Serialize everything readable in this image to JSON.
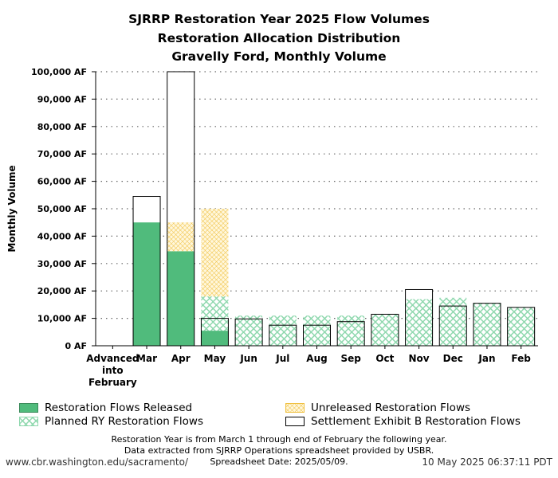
{
  "colors": {
    "released": "#50bb7c",
    "planned_hatch": "#8fd8ae",
    "unreleased_hatch": "#f0c040",
    "settlement_edge": "#000000",
    "grid": "#666666"
  },
  "chart_data": {
    "type": "bar",
    "title": [
      "SJRRP Restoration Year 2025 Flow Volumes",
      "Restoration Allocation Distribution",
      "Gravelly Ford, Monthly Volume"
    ],
    "ylabel": "Monthly Volume",
    "xlabel": "",
    "ylim": [
      0,
      100000
    ],
    "y_ticks": [
      0,
      10000,
      20000,
      30000,
      40000,
      50000,
      60000,
      70000,
      80000,
      90000,
      100000
    ],
    "y_tick_labels": [
      "0 AF",
      "10,000 AF",
      "20,000 AF",
      "30,000 AF",
      "40,000 AF",
      "50,000 AF",
      "60,000 AF",
      "70,000 AF",
      "80,000 AF",
      "90,000 AF",
      "100,000 AF"
    ],
    "grid": true,
    "categories": [
      "Advanced into February",
      "Mar",
      "Apr",
      "May",
      "Jun",
      "Jul",
      "Aug",
      "Sep",
      "Oct",
      "Nov",
      "Dec",
      "Jan",
      "Feb"
    ],
    "series": [
      {
        "name": "Restoration Flows Released",
        "style": "solid",
        "values": [
          0,
          45000,
          34500,
          5500,
          0,
          0,
          0,
          0,
          0,
          0,
          0,
          0,
          0
        ]
      },
      {
        "name": "Planned RY Restoration Flows",
        "style": "hatch",
        "values": [
          0,
          0,
          0,
          12500,
          11000,
          11000,
          11000,
          11000,
          11500,
          17000,
          17500,
          15500,
          14000
        ]
      },
      {
        "name": "Unreleased Restoration Flows",
        "style": "hatch-orange",
        "values": [
          0,
          0,
          10500,
          32000,
          0,
          0,
          0,
          0,
          0,
          0,
          0,
          0,
          0
        ]
      },
      {
        "name": "Settlement Exhibit B Restoration Flows",
        "style": "outline",
        "values": [
          0,
          54500,
          100000,
          10000,
          9800,
          7500,
          7500,
          8800,
          11500,
          20500,
          14500,
          15500,
          14000
        ]
      }
    ],
    "legend_position": "bottom"
  },
  "notes": [
    "Restoration Year is from March 1 through end of February the following year.",
    "Data extracted from SJRRP Operations spreadsheet provided by USBR.",
    "Spreadsheet Date: 2025/05/09."
  ],
  "footer": {
    "source_url": "www.cbr.washington.edu/sacramento/",
    "timestamp": "10 May 2025 06:37:11 PDT"
  }
}
